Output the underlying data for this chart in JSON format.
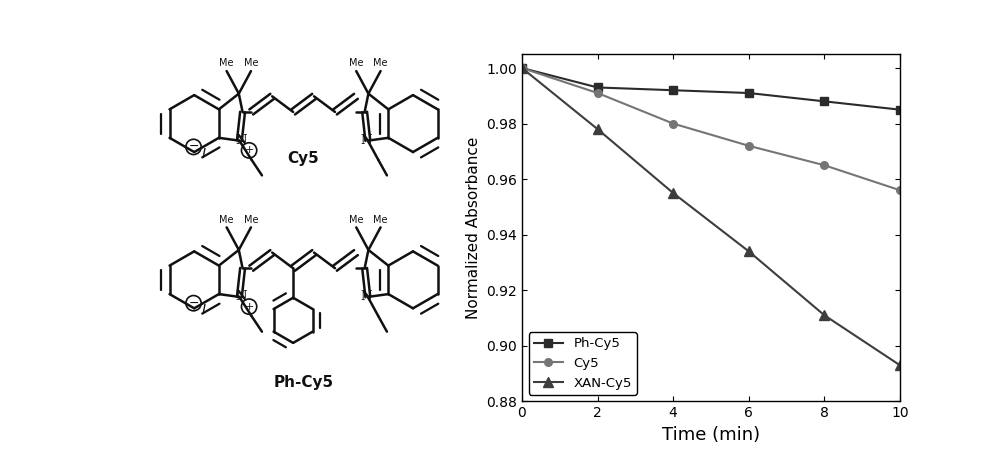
{
  "time": [
    0,
    2,
    4,
    6,
    8,
    10
  ],
  "Ph_Cy5": [
    1.0,
    0.993,
    0.992,
    0.991,
    0.988,
    0.985
  ],
  "Cy5": [
    1.0,
    0.991,
    0.98,
    0.972,
    0.965,
    0.956
  ],
  "XAN_Cy5": [
    1.0,
    0.978,
    0.955,
    0.934,
    0.911,
    0.893
  ],
  "xlabel": "Time (min)",
  "ylabel": "Normalized Absorbance",
  "xlim": [
    0,
    10
  ],
  "ylim": [
    0.88,
    1.005
  ],
  "yticks": [
    0.88,
    0.9,
    0.92,
    0.94,
    0.96,
    0.98,
    1.0
  ],
  "xticks": [
    0,
    2,
    4,
    6,
    8,
    10
  ],
  "legend_labels": [
    "Ph-Cy5",
    "Cy5",
    "XAN-Cy5"
  ],
  "line_color_Ph": "#2b2b2b",
  "line_color_Cy5": "#757575",
  "line_color_XAN": "#3d3d3d",
  "background_color": "#ffffff",
  "fig_width": 10.0,
  "fig_height": 4.51
}
